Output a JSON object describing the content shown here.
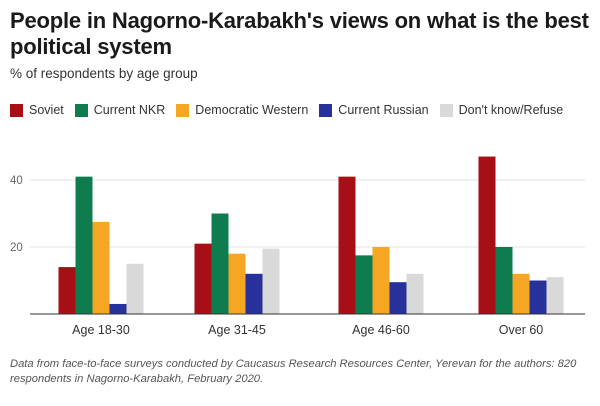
{
  "header": {
    "title": "People in Nagorno-Karabakh's views on what is the best political system",
    "subtitle": "% of respondents by age group"
  },
  "footer": {
    "note": "Data from face-to-face surveys conducted by Caucasus Research Resources Center, Yerevan for the authors: 820 respondents in Nagorno-Karabakh, February 2020."
  },
  "chart_data": {
    "type": "bar",
    "title": "People in Nagorno-Karabakh's views on what is the best political system",
    "subtitle": "% of respondents by age group",
    "categories": [
      "Age 18-30",
      "Age 31-45",
      "Age 46-60",
      "Over 60"
    ],
    "series": [
      {
        "name": "Soviet",
        "color": "#a50f15",
        "values": [
          14,
          21,
          41,
          47
        ]
      },
      {
        "name": "Current NKR",
        "color": "#0e7c4f",
        "values": [
          41,
          30,
          17.5,
          20
        ]
      },
      {
        "name": "Democratic Western",
        "color": "#f5a623",
        "values": [
          27.5,
          18,
          20,
          12
        ]
      },
      {
        "name": "Current Russian",
        "color": "#27319c",
        "values": [
          3,
          12,
          9.5,
          10
        ]
      },
      {
        "name": "Don't know/Refuse",
        "color": "#d9d9d9",
        "values": [
          15,
          19.5,
          12,
          11
        ]
      }
    ],
    "yticks": [
      20,
      40
    ],
    "ylim": [
      0,
      50
    ],
    "grid": true,
    "legend": "top-left",
    "xlabel": "",
    "ylabel": ""
  }
}
